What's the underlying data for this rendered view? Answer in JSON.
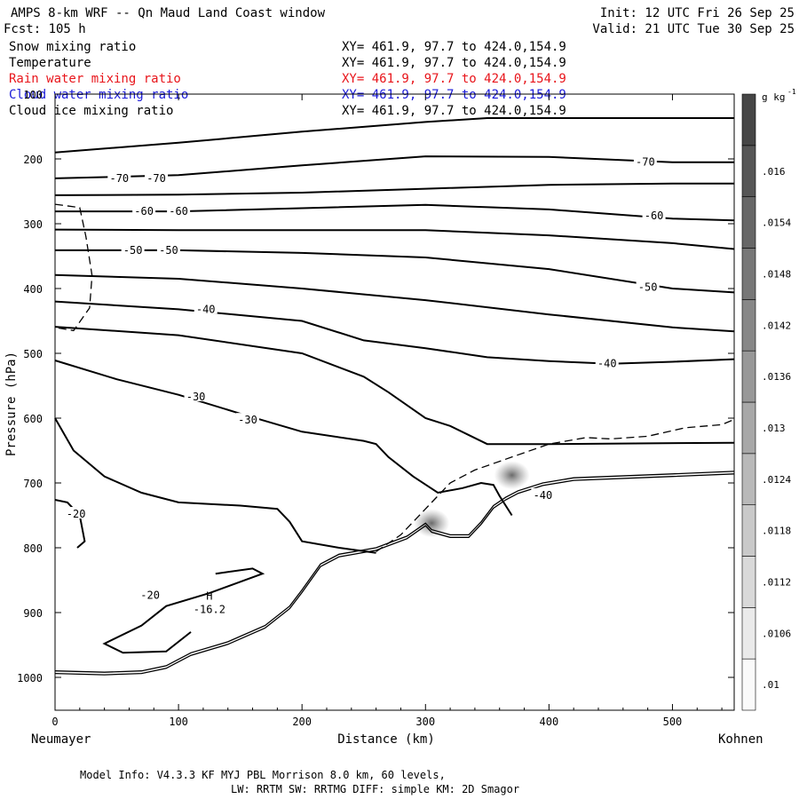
{
  "header": {
    "title": "AMPS 8-km WRF -- Qn Maud Land Coast window",
    "init": "Init: 12 UTC Fri 26 Sep 25",
    "fcst": "Fcst:  105 h",
    "valid": "Valid: 21 UTC Tue 30 Sep 25"
  },
  "fields": [
    {
      "name": "Snow mixing ratio",
      "xy": "XY= 461.9, 97.7 to 424.0,154.9",
      "color": "#000000"
    },
    {
      "name": "Temperature",
      "xy": "XY= 461.9, 97.7 to 424.0,154.9",
      "color": "#000000"
    },
    {
      "name": "Rain water mixing ratio",
      "xy": "XY= 461.9, 97.7 to 424.0,154.9",
      "color": "#e8151b"
    },
    {
      "name": "Cloud water mixing ratio",
      "xy": "XY= 461.9, 97.7 to 424.0,154.9",
      "color": "#1a1ad8"
    },
    {
      "name": "Cloud ice mixing ratio",
      "xy": "XY= 461.9, 97.7 to 424.0,154.9",
      "color": "#000000"
    }
  ],
  "footer": {
    "model_info_1": "Model Info: V4.3.3   KF      MYJ PBL  Morrison              8.0 km,  60 levels,",
    "model_info_2": "LW: RRTM SW: RRTMG   DIFF: simple KM: 2D Smagor"
  },
  "chart_data": {
    "type": "cross-section contour",
    "xlabel": "Distance (km)",
    "ylabel": "Pressure (hPa)",
    "x_left_label": "Neumayer",
    "x_right_label": "Kohnen",
    "xlim": [
      0,
      550
    ],
    "ylim": [
      1050,
      100
    ],
    "x_ticks": [
      0,
      100,
      200,
      300,
      400,
      500
    ],
    "y_ticks": [
      100,
      200,
      300,
      400,
      500,
      600,
      700,
      800,
      900,
      1000
    ],
    "colorbar": {
      "units": "g kg",
      "units_exp": "-1",
      "labels": [
        ".01",
        ".0106",
        ".0112",
        ".0118",
        ".0124",
        ".013",
        ".0136",
        ".0142",
        ".0148",
        ".0154",
        ".016"
      ]
    },
    "max_label": "H",
    "max_value": "-16.2",
    "max_point": [
      125,
      880
    ],
    "contour_labels": [
      {
        "text": "-70",
        "x": 52,
        "p": 230
      },
      {
        "text": "-70",
        "x": 82,
        "p": 230
      },
      {
        "text": "-70",
        "x": 478,
        "p": 205
      },
      {
        "text": "-60",
        "x": 72,
        "p": 281
      },
      {
        "text": "-60",
        "x": 100,
        "p": 281
      },
      {
        "text": "-60",
        "x": 485,
        "p": 288
      },
      {
        "text": "-50",
        "x": 63,
        "p": 341
      },
      {
        "text": "-50",
        "x": 92,
        "p": 341
      },
      {
        "text": "-50",
        "x": 480,
        "p": 398
      },
      {
        "text": "-40",
        "x": 122,
        "p": 432
      },
      {
        "text": "-40",
        "x": 447,
        "p": 516
      },
      {
        "text": "-40",
        "x": 395,
        "p": 719
      },
      {
        "text": "-30",
        "x": 114,
        "p": 567
      },
      {
        "text": "-30",
        "x": 156,
        "p": 603
      },
      {
        "text": "-20",
        "x": 17,
        "p": 748
      },
      {
        "text": "-20",
        "x": 77,
        "p": 873
      }
    ],
    "isotherms": [
      {
        "level": -75,
        "points": [
          [
            0,
            190
          ],
          [
            100,
            175
          ],
          [
            200,
            158
          ],
          [
            300,
            143
          ],
          [
            350,
            137
          ],
          [
            400,
            137
          ],
          [
            550,
            137
          ]
        ]
      },
      {
        "level": -70,
        "points": [
          [
            0,
            230
          ],
          [
            100,
            225
          ],
          [
            200,
            210
          ],
          [
            300,
            196
          ],
          [
            400,
            197
          ],
          [
            500,
            205
          ],
          [
            550,
            205
          ]
        ]
      },
      {
        "level": -65,
        "points": [
          [
            0,
            256
          ],
          [
            100,
            255
          ],
          [
            200,
            252
          ],
          [
            300,
            246
          ],
          [
            400,
            240
          ],
          [
            500,
            238
          ],
          [
            550,
            238
          ]
        ]
      },
      {
        "level": -60,
        "points": [
          [
            0,
            281
          ],
          [
            100,
            281
          ],
          [
            200,
            276
          ],
          [
            300,
            271
          ],
          [
            400,
            278
          ],
          [
            500,
            292
          ],
          [
            550,
            295
          ]
        ]
      },
      {
        "level": -55,
        "points": [
          [
            0,
            309
          ],
          [
            100,
            310
          ],
          [
            200,
            310
          ],
          [
            300,
            310
          ],
          [
            400,
            318
          ],
          [
            500,
            330
          ],
          [
            550,
            339
          ]
        ]
      },
      {
        "level": -50,
        "points": [
          [
            0,
            341
          ],
          [
            100,
            341
          ],
          [
            200,
            345
          ],
          [
            300,
            352
          ],
          [
            400,
            370
          ],
          [
            500,
            400
          ],
          [
            550,
            406
          ]
        ]
      },
      {
        "level": -45,
        "points": [
          [
            0,
            379
          ],
          [
            100,
            385
          ],
          [
            200,
            400
          ],
          [
            300,
            418
          ],
          [
            400,
            440
          ],
          [
            500,
            460
          ],
          [
            550,
            466
          ]
        ]
      },
      {
        "level": -40,
        "points": [
          [
            0,
            420
          ],
          [
            100,
            432
          ],
          [
            200,
            450
          ],
          [
            250,
            480
          ],
          [
            300,
            492
          ],
          [
            350,
            506
          ],
          [
            400,
            512
          ],
          [
            450,
            516
          ],
          [
            500,
            513
          ],
          [
            550,
            509
          ]
        ]
      },
      {
        "level": -35,
        "points": [
          [
            0,
            459
          ],
          [
            100,
            472
          ],
          [
            200,
            500
          ],
          [
            250,
            536
          ],
          [
            270,
            560
          ],
          [
            300,
            600
          ],
          [
            320,
            612
          ],
          [
            350,
            640
          ],
          [
            400,
            640
          ],
          [
            550,
            638
          ]
        ]
      },
      {
        "level": -30,
        "points": [
          [
            0,
            511
          ],
          [
            50,
            540
          ],
          [
            100,
            564
          ],
          [
            150,
            593
          ],
          [
            200,
            621
          ],
          [
            250,
            635
          ],
          [
            260,
            640
          ],
          [
            270,
            660
          ],
          [
            290,
            690
          ],
          [
            310,
            715
          ],
          [
            330,
            708
          ],
          [
            345,
            700
          ],
          [
            355,
            703
          ],
          [
            360,
            720
          ],
          [
            370,
            750
          ]
        ]
      },
      {
        "level": -20,
        "points": [
          [
            0,
            600
          ],
          [
            15,
            650
          ],
          [
            40,
            690
          ],
          [
            70,
            715
          ],
          [
            100,
            730
          ],
          [
            150,
            735
          ],
          [
            180,
            740
          ],
          [
            190,
            760
          ],
          [
            200,
            790
          ],
          [
            230,
            800
          ],
          [
            260,
            808
          ]
        ]
      },
      {
        "level": -20,
        "points": [
          [
            0,
            726
          ],
          [
            10,
            730
          ],
          [
            20,
            750
          ],
          [
            24,
            790
          ],
          [
            18,
            800
          ]
        ]
      },
      {
        "level": -20,
        "points": [
          [
            130,
            840
          ],
          [
            160,
            832
          ],
          [
            168,
            840
          ],
          [
            125,
            870
          ],
          [
            90,
            890
          ],
          [
            70,
            920
          ],
          [
            40,
            948
          ],
          [
            55,
            962
          ],
          [
            90,
            960
          ],
          [
            110,
            930
          ]
        ]
      }
    ],
    "theta_dashed": [
      {
        "points": [
          [
            0,
            270
          ],
          [
            20,
            275
          ],
          [
            25,
            320
          ],
          [
            30,
            380
          ],
          [
            28,
            430
          ],
          [
            15,
            465
          ],
          [
            0,
            460
          ]
        ]
      },
      {
        "points": [
          [
            260,
            806
          ],
          [
            280,
            780
          ],
          [
            300,
            740
          ],
          [
            320,
            700
          ],
          [
            340,
            680
          ],
          [
            370,
            660
          ],
          [
            400,
            640
          ],
          [
            430,
            630
          ],
          [
            450,
            632
          ],
          [
            480,
            628
          ],
          [
            510,
            615
          ],
          [
            540,
            610
          ],
          [
            550,
            602
          ]
        ]
      }
    ],
    "terrain": [
      [
        0,
        990
      ],
      [
        40,
        992
      ],
      [
        70,
        990
      ],
      [
        90,
        982
      ],
      [
        110,
        962
      ],
      [
        140,
        945
      ],
      [
        170,
        920
      ],
      [
        190,
        890
      ],
      [
        200,
        865
      ],
      [
        215,
        825
      ],
      [
        230,
        810
      ],
      [
        260,
        800
      ],
      [
        285,
        782
      ],
      [
        300,
        762
      ],
      [
        305,
        772
      ],
      [
        320,
        780
      ],
      [
        335,
        780
      ],
      [
        345,
        760
      ],
      [
        355,
        735
      ],
      [
        365,
        722
      ],
      [
        375,
        712
      ],
      [
        395,
        700
      ],
      [
        420,
        692
      ],
      [
        500,
        686
      ],
      [
        550,
        682
      ]
    ],
    "shading": [
      {
        "x": 305,
        "p": 762,
        "value": 0.0125
      },
      {
        "x": 370,
        "p": 688,
        "value": 0.0135
      }
    ]
  }
}
